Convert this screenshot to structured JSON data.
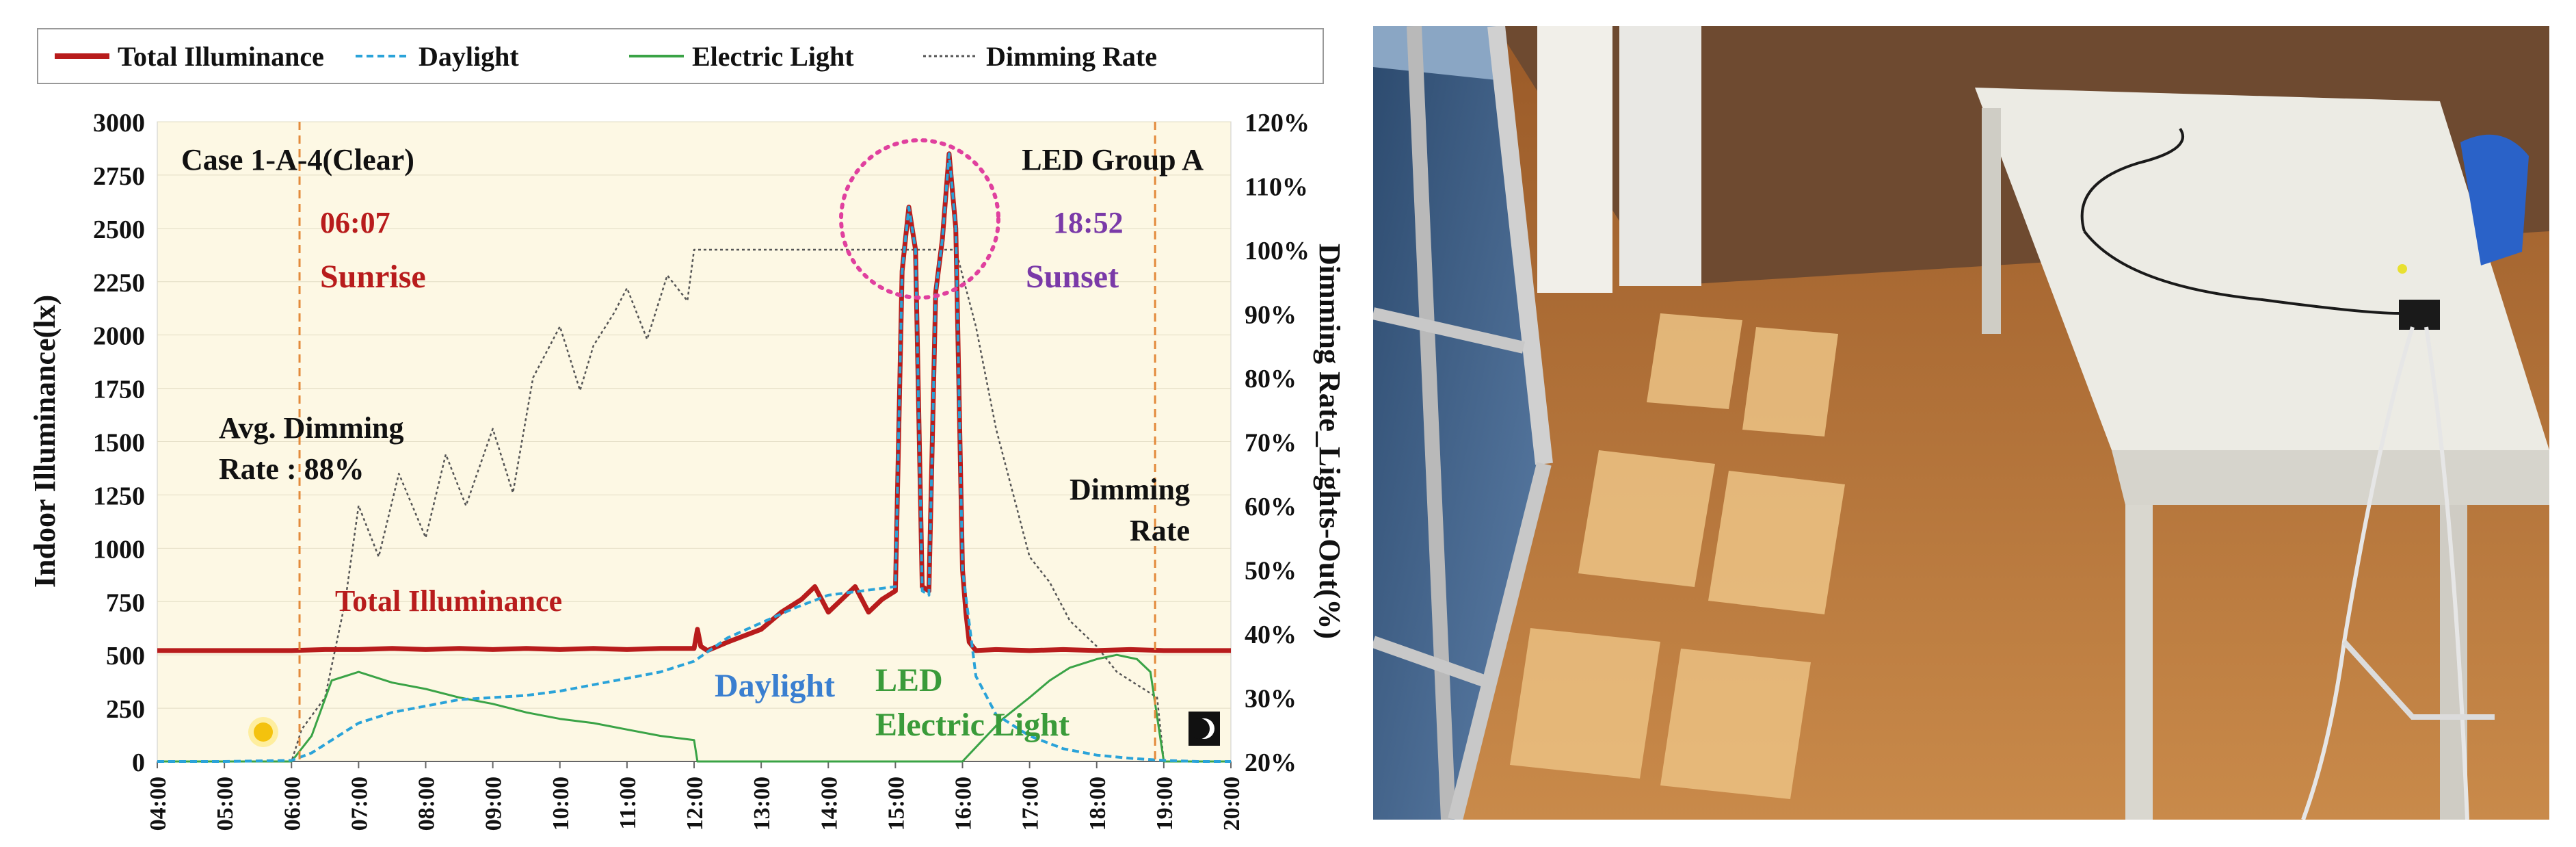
{
  "chart_data": {
    "type": "line",
    "case_label": "Case 1-A-4(Clear)",
    "group_label": "LED Group A",
    "xlabel": "",
    "ylabel": "Indoor Illuminance(lx)",
    "y2label": "Dimming Rate_Lights-Out(%)",
    "x_ticks": [
      "04:00",
      "05:00",
      "06:00",
      "07:00",
      "08:00",
      "09:00",
      "10:00",
      "11:00",
      "12:00",
      "13:00",
      "14:00",
      "15:00",
      "16:00",
      "17:00",
      "18:00",
      "19:00",
      "20:00"
    ],
    "xlim": [
      4,
      20
    ],
    "ylim": [
      0,
      3000
    ],
    "y_ticks": [
      "0",
      "250",
      "500",
      "750",
      "1000",
      "1250",
      "1500",
      "1750",
      "2000",
      "2250",
      "2500",
      "2750",
      "3000"
    ],
    "y2lim": [
      20,
      120
    ],
    "y2_ticks": [
      "20%",
      "30%",
      "40%",
      "50%",
      "60%",
      "70%",
      "80%",
      "90%",
      "100%",
      "110%",
      "120%"
    ],
    "legend": [
      {
        "name": "Total Illuminance",
        "style": "solid-thick",
        "color": "#b81c1c"
      },
      {
        "name": "Daylight",
        "style": "dashed",
        "color": "#2aa3d9"
      },
      {
        "name": "Electric Light",
        "style": "solid",
        "color": "#3aa346"
      },
      {
        "name": "Dimming Rate",
        "style": "dotted",
        "color": "#555555"
      }
    ],
    "annotations": {
      "sunrise_time": "06:07",
      "sunrise_label": "Sunrise",
      "sunset_time": "18:52",
      "sunset_label": "Sunset",
      "avg_line1": "Avg. Dimming",
      "avg_line2": "Rate : 88%",
      "dimming_line1": "Dimming",
      "dimming_line2": "Rate",
      "total_label": "Total Illuminance",
      "daylight_label": "Daylight",
      "led_line1": "LED",
      "led_line2": "Electric Light"
    },
    "markers": {
      "sunrise_hour": 6.12,
      "sunset_hour": 18.87
    },
    "series": [
      {
        "name": "Total Illuminance",
        "x": [
          4,
          5,
          6,
          6.5,
          7,
          7.5,
          8,
          8.5,
          9,
          9.5,
          10,
          10.5,
          11,
          11.5,
          12,
          12.05,
          12.1,
          12.2,
          12.5,
          13,
          13.3,
          13.6,
          13.8,
          14,
          14.2,
          14.4,
          14.6,
          14.8,
          15,
          15.1,
          15.2,
          15.3,
          15.4,
          15.5,
          15.6,
          15.7,
          15.8,
          15.9,
          16,
          16.05,
          16.1,
          16.2,
          16.5,
          17,
          17.5,
          18,
          18.5,
          19,
          19.5,
          20
        ],
        "values": [
          520,
          520,
          520,
          525,
          525,
          530,
          525,
          530,
          525,
          530,
          525,
          530,
          525,
          530,
          530,
          620,
          540,
          520,
          560,
          620,
          700,
          760,
          820,
          700,
          760,
          820,
          700,
          760,
          800,
          2300,
          2600,
          2400,
          820,
          800,
          2200,
          2450,
          2850,
          2500,
          900,
          700,
          560,
          520,
          525,
          520,
          525,
          520,
          525,
          520,
          520,
          520
        ]
      },
      {
        "name": "Daylight",
        "x": [
          4,
          5,
          6,
          6.3,
          6.6,
          7,
          7.5,
          8,
          8.5,
          9,
          9.5,
          10,
          10.5,
          11,
          11.5,
          12,
          12.5,
          13,
          13.5,
          14,
          14.5,
          15,
          15.1,
          15.2,
          15.3,
          15.4,
          15.5,
          15.6,
          15.7,
          15.8,
          15.9,
          16,
          16.2,
          16.5,
          17,
          17.5,
          18,
          18.5,
          19,
          19.5,
          20
        ],
        "values": [
          0,
          0,
          5,
          40,
          100,
          180,
          230,
          260,
          290,
          300,
          310,
          330,
          360,
          390,
          420,
          470,
          580,
          650,
          720,
          780,
          800,
          820,
          2300,
          2600,
          2400,
          800,
          780,
          2200,
          2450,
          2850,
          2500,
          900,
          400,
          220,
          120,
          60,
          30,
          15,
          5,
          0,
          0
        ]
      },
      {
        "name": "Electric Light",
        "x": [
          4,
          5,
          6,
          6.3,
          6.6,
          7,
          7.2,
          7.5,
          8,
          8.5,
          9,
          9.5,
          10,
          10.5,
          11,
          11.5,
          12,
          12.05,
          12.2,
          13,
          14,
          15,
          16,
          16.3,
          16.6,
          17,
          17.3,
          17.6,
          18,
          18.3,
          18.6,
          18.8,
          19,
          19.5,
          20
        ],
        "values": [
          0,
          0,
          0,
          120,
          380,
          420,
          400,
          370,
          340,
          300,
          270,
          230,
          200,
          180,
          150,
          120,
          100,
          0,
          0,
          0,
          0,
          0,
          0,
          100,
          200,
          300,
          380,
          440,
          480,
          500,
          480,
          420,
          0,
          0,
          0
        ]
      },
      {
        "name": "Dimming Rate",
        "x": [
          4,
          5,
          6,
          6.15,
          6.5,
          6.8,
          7,
          7.3,
          7.6,
          8,
          8.3,
          8.6,
          9,
          9.3,
          9.6,
          10,
          10.3,
          10.5,
          10.8,
          11,
          11.3,
          11.6,
          11.9,
          12,
          12.5,
          13,
          14,
          15,
          15.5,
          15.9,
          16.2,
          16.5,
          16.8,
          17,
          17.3,
          17.6,
          18,
          18.3,
          18.6,
          18.9,
          19,
          19.5,
          20
        ],
        "values": [
          20,
          20,
          20,
          25,
          30,
          45,
          60,
          52,
          65,
          55,
          68,
          60,
          72,
          62,
          80,
          88,
          78,
          85,
          90,
          94,
          86,
          96,
          92,
          100,
          100,
          100,
          100,
          100,
          100,
          100,
          88,
          72,
          60,
          52,
          48,
          42,
          38,
          34,
          32,
          30,
          20,
          20,
          20
        ]
      }
    ]
  },
  "photo": {
    "description_icon": "room-photo-icon"
  }
}
